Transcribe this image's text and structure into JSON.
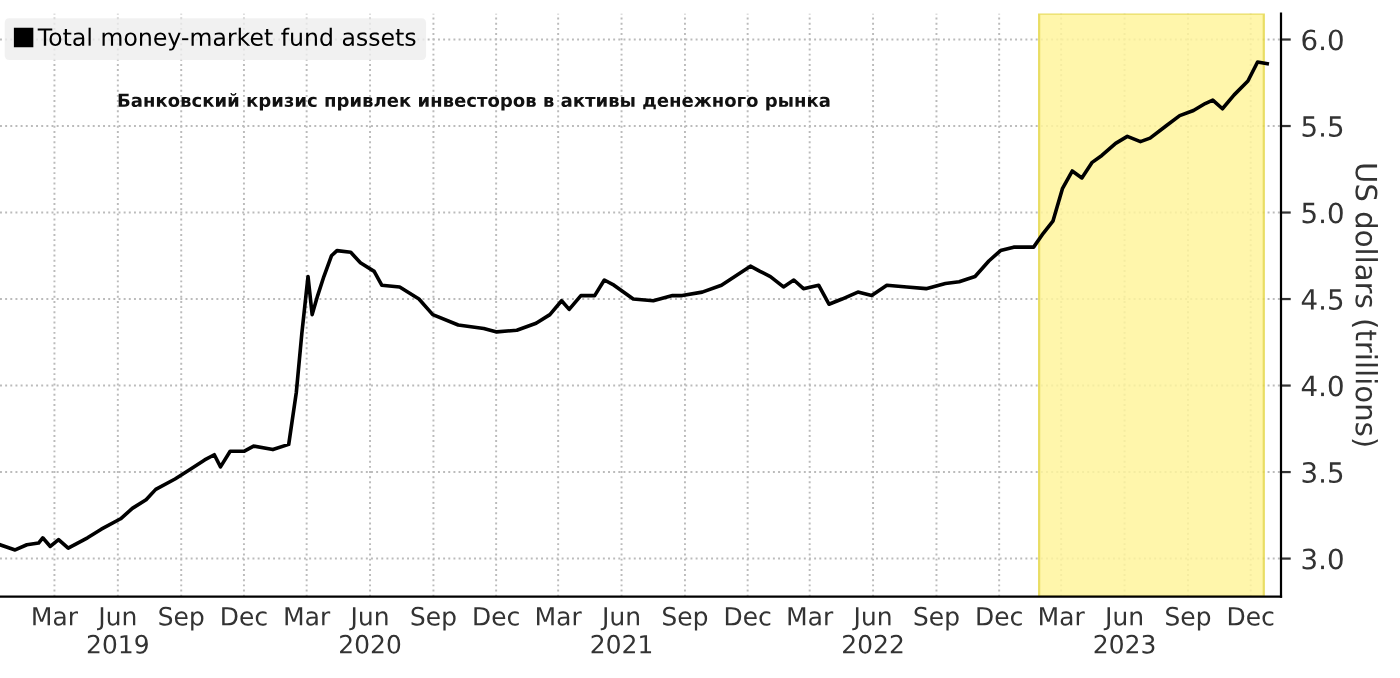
{
  "chart_data": {
    "type": "line",
    "annotations": [
      "Банковский кризис привлек инвесторов в активы денежного рынка"
    ],
    "ylabel": "US dollars (trillions)",
    "x": [
      "2018-12-12",
      "2019-01-03",
      "2019-01-20",
      "2019-02-06",
      "2019-02-12",
      "2019-02-23",
      "2019-03-07",
      "2019-03-21",
      "2019-04-18",
      "2019-05-08",
      "2019-06-05",
      "2019-06-22",
      "2019-07-12",
      "2019-07-26",
      "2019-08-23",
      "2019-09-12",
      "2019-10-05",
      "2019-10-19",
      "2019-10-28",
      "2019-11-11",
      "2019-12-01",
      "2019-12-15",
      "2020-01-12",
      "2020-02-04",
      "2020-02-15",
      "2020-02-23",
      "2020-03-03",
      "2020-03-09",
      "2020-03-17",
      "2020-03-26",
      "2020-04-06",
      "2020-04-14",
      "2020-05-04",
      "2020-05-18",
      "2020-06-07",
      "2020-06-18",
      "2020-07-14",
      "2020-08-11",
      "2020-08-31",
      "2020-10-07",
      "2020-11-13",
      "2020-12-02",
      "2020-12-31",
      "2021-01-28",
      "2021-02-17",
      "2021-03-06",
      "2021-03-17",
      "2021-04-03",
      "2021-04-23",
      "2021-05-07",
      "2021-05-21",
      "2021-06-18",
      "2021-07-17",
      "2021-08-14",
      "2021-08-28",
      "2021-09-26",
      "2021-10-24",
      "2021-12-05",
      "2021-12-19",
      "2022-01-03",
      "2022-01-22",
      "2022-02-06",
      "2022-02-20",
      "2022-03-14",
      "2022-03-29",
      "2022-04-17",
      "2022-05-10",
      "2022-05-30",
      "2022-06-21",
      "2022-07-20",
      "2022-08-17",
      "2022-09-14",
      "2022-10-04",
      "2022-10-27",
      "2022-11-16",
      "2022-12-03",
      "2022-12-22",
      "2023-01-20",
      "2023-02-03",
      "2023-02-17",
      "2023-03-03",
      "2023-03-17",
      "2023-03-31",
      "2023-04-15",
      "2023-04-29",
      "2023-05-19",
      "2023-06-05",
      "2023-06-24",
      "2023-07-08",
      "2023-07-31",
      "2023-08-20",
      "2023-09-09",
      "2023-09-26",
      "2023-10-07",
      "2023-10-21",
      "2023-11-07",
      "2023-11-27",
      "2023-12-11",
      "2023-12-25"
    ],
    "series": [
      {
        "name": "Total money-market fund assets",
        "color": "#000000",
        "values": [
          3.08,
          3.05,
          3.08,
          3.09,
          3.12,
          3.07,
          3.11,
          3.06,
          3.12,
          3.17,
          3.23,
          3.29,
          3.34,
          3.4,
          3.46,
          3.51,
          3.57,
          3.6,
          3.53,
          3.62,
          3.62,
          3.65,
          3.63,
          3.66,
          3.96,
          4.3,
          4.63,
          4.41,
          4.52,
          4.63,
          4.75,
          4.78,
          4.77,
          4.71,
          4.66,
          4.58,
          4.57,
          4.5,
          4.41,
          4.35,
          4.33,
          4.31,
          4.32,
          4.36,
          4.41,
          4.49,
          4.44,
          4.52,
          4.52,
          4.61,
          4.58,
          4.5,
          4.49,
          4.52,
          4.52,
          4.54,
          4.58,
          4.69,
          4.66,
          4.63,
          4.57,
          4.61,
          4.56,
          4.58,
          4.47,
          4.5,
          4.54,
          4.52,
          4.58,
          4.57,
          4.56,
          4.59,
          4.6,
          4.63,
          4.72,
          4.78,
          4.8,
          4.8,
          4.88,
          4.95,
          5.14,
          5.24,
          5.2,
          5.29,
          5.33,
          5.4,
          5.44,
          5.41,
          5.43,
          5.5,
          5.56,
          5.59,
          5.63,
          5.65,
          5.6,
          5.68,
          5.76,
          5.87,
          5.86
        ]
      }
    ],
    "xlim": [
      "2018-12-12",
      "2024-01-14"
    ],
    "xticks": [
      {
        "value": "2019-03-01",
        "label": "Mar"
      },
      {
        "value": "2019-06-01",
        "label": "Jun\n2019"
      },
      {
        "value": "2019-09-01",
        "label": "Sep"
      },
      {
        "value": "2019-12-01",
        "label": "Dec"
      },
      {
        "value": "2020-03-01",
        "label": "Mar"
      },
      {
        "value": "2020-06-01",
        "label": "Jun\n2020"
      },
      {
        "value": "2020-09-01",
        "label": "Sep"
      },
      {
        "value": "2020-12-01",
        "label": "Dec"
      },
      {
        "value": "2021-03-01",
        "label": "Mar"
      },
      {
        "value": "2021-06-01",
        "label": "Jun\n2021"
      },
      {
        "value": "2021-09-01",
        "label": "Sep"
      },
      {
        "value": "2021-12-01",
        "label": "Dec"
      },
      {
        "value": "2022-03-01",
        "label": "Mar"
      },
      {
        "value": "2022-06-01",
        "label": "Jun\n2022"
      },
      {
        "value": "2022-09-01",
        "label": "Sep"
      },
      {
        "value": "2022-12-01",
        "label": "Dec"
      },
      {
        "value": "2023-03-01",
        "label": "Mar"
      },
      {
        "value": "2023-06-01",
        "label": "Jun\n2023"
      },
      {
        "value": "2023-09-01",
        "label": "Sep"
      },
      {
        "value": "2023-12-01",
        "label": "Dec"
      }
    ],
    "ylim": [
      2.78,
      6.15
    ],
    "yticks": [
      {
        "value": 3.0,
        "label": "3.0"
      },
      {
        "value": 3.5,
        "label": "3.5"
      },
      {
        "value": 4.0,
        "label": "4.0"
      },
      {
        "value": 4.5,
        "label": "4.5"
      },
      {
        "value": 5.0,
        "label": "5.0"
      },
      {
        "value": 5.5,
        "label": "5.5"
      },
      {
        "value": 6.0,
        "label": "6.0"
      }
    ],
    "bands": [
      {
        "axis": "x",
        "from": "2023-01-28",
        "to": "2023-12-20",
        "label": null,
        "color": "#fff59d"
      }
    ],
    "grid": true,
    "legend": "top left",
    "marker": "none",
    "line_style": "solid"
  }
}
